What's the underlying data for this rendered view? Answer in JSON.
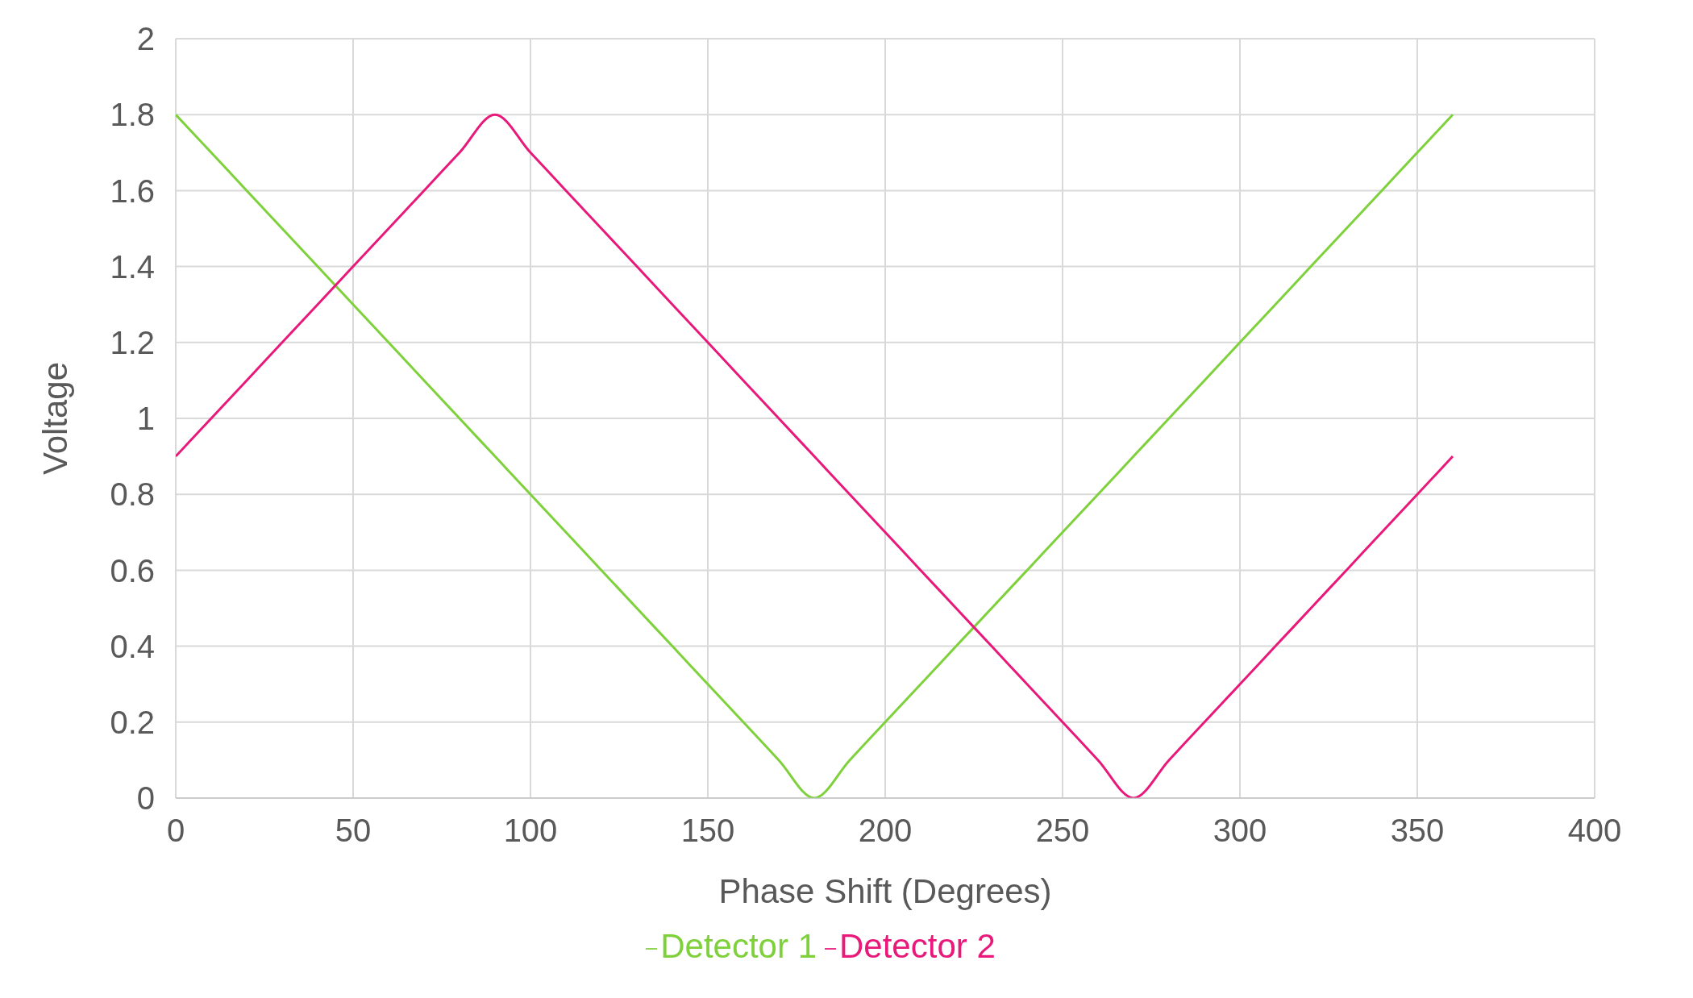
{
  "chart_data": {
    "type": "line",
    "xlabel": "Phase Shift (Degrees)",
    "ylabel": "Voltage",
    "x": [
      0,
      10,
      20,
      30,
      40,
      50,
      60,
      70,
      80,
      90,
      100,
      110,
      120,
      130,
      140,
      150,
      160,
      170,
      180,
      190,
      200,
      210,
      220,
      230,
      240,
      250,
      260,
      270,
      280,
      290,
      300,
      310,
      320,
      330,
      340,
      350,
      360
    ],
    "series": [
      {
        "name": "Detector 1",
        "color": "#7ed13b",
        "values": [
          1.8,
          1.7,
          1.6,
          1.5,
          1.4,
          1.3,
          1.2,
          1.1,
          1.0,
          0.9,
          0.8,
          0.7,
          0.6,
          0.5,
          0.4,
          0.3,
          0.2,
          0.1,
          0,
          0.1,
          0.2,
          0.3,
          0.4,
          0.5,
          0.6,
          0.7,
          0.8,
          0.9,
          1.0,
          1.1,
          1.2,
          1.3,
          1.4,
          1.5,
          1.6,
          1.7,
          1.8
        ]
      },
      {
        "name": "Detector 2",
        "color": "#e8197a",
        "values": [
          0.9,
          1.0,
          1.1,
          1.2,
          1.3,
          1.4,
          1.5,
          1.6,
          1.7,
          1.8,
          1.7,
          1.6,
          1.5,
          1.4,
          1.3,
          1.2,
          1.1,
          1.0,
          0.9,
          0.8,
          0.7,
          0.6,
          0.5,
          0.4,
          0.3,
          0.2,
          0.1,
          0,
          0.1,
          0.2,
          0.3,
          0.4,
          0.5,
          0.6,
          0.7,
          0.8,
          0.9
        ]
      }
    ],
    "xlim": [
      0,
      400
    ],
    "xticks": [
      0,
      50,
      100,
      150,
      200,
      250,
      300,
      350,
      400
    ],
    "ylim": [
      0,
      2
    ],
    "yticks": [
      0,
      0.2,
      0.4,
      0.6,
      0.8,
      1,
      1.2,
      1.4,
      1.6,
      1.8,
      2
    ],
    "grid": true,
    "legend": "bottom",
    "marker": "none",
    "line_style": "solid"
  }
}
